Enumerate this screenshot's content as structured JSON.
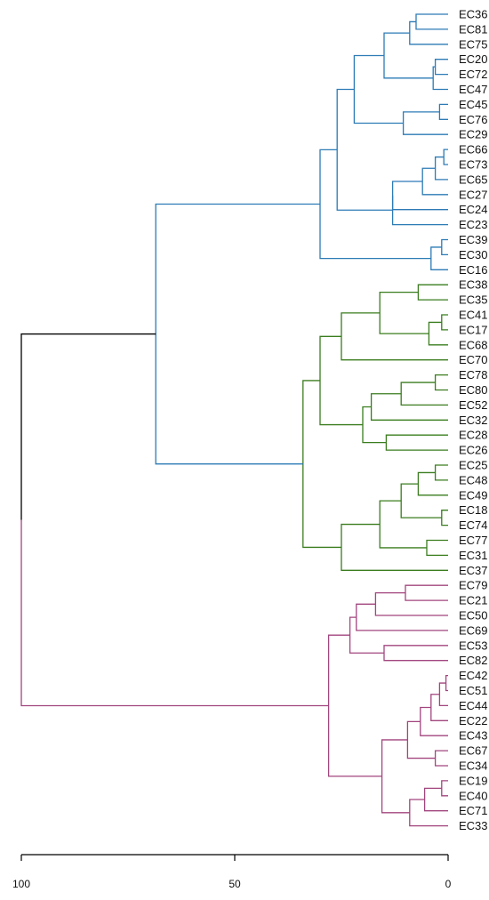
{
  "chart_data": {
    "type": "dendrogram",
    "orientation": "horizontal",
    "axis": {
      "ticks": [
        100,
        50,
        0
      ],
      "range": [
        100,
        0
      ]
    },
    "colors": {
      "blue": "#2c7bb6",
      "green": "#3a7d1e",
      "magenta": "#a2457e",
      "root": "#000000"
    },
    "root_merge": [
      100,
      53.5
    ],
    "leaves": [
      "EC36",
      "EC81",
      "EC75",
      "EC20",
      "EC72",
      "EC47",
      "EC45",
      "EC76",
      "EC29",
      "EC66",
      "EC73",
      "EC65",
      "EC27",
      "EC24",
      "EC23",
      "EC39",
      "EC30",
      "EC16",
      "EC38",
      "EC35",
      "EC41",
      "EC17",
      "EC68",
      "EC70",
      "EC78",
      "EC80",
      "EC52",
      "EC32",
      "EC28",
      "EC26",
      "EC25",
      "EC48",
      "EC49",
      "EC18",
      "EC74",
      "EC77",
      "EC31",
      "EC37",
      "EC79",
      "EC21",
      "EC50",
      "EC69",
      "EC53",
      "EC82",
      "EC42",
      "EC51",
      "EC44",
      "EC22",
      "EC43",
      "EC67",
      "EC34",
      "EC19",
      "EC40",
      "EC71",
      "EC33"
    ],
    "merges": [
      [
        7.5,
        0,
        1,
        "blue"
      ],
      [
        9,
        "m0",
        2,
        "blue"
      ],
      [
        3,
        3,
        4,
        "blue"
      ],
      [
        3.5,
        "m2",
        5,
        "blue"
      ],
      [
        15,
        "m1",
        "m3",
        "blue"
      ],
      [
        2,
        6,
        7,
        "blue"
      ],
      [
        10.5,
        "m5",
        8,
        "blue"
      ],
      [
        22,
        "m4",
        "m6",
        "blue"
      ],
      [
        1,
        9,
        10,
        "blue"
      ],
      [
        3,
        "m8",
        11,
        "blue"
      ],
      [
        6,
        "m9",
        12,
        "blue"
      ],
      [
        13,
        "m10",
        13,
        "blue"
      ],
      [
        13,
        "m11",
        14,
        "blue"
      ],
      [
        26,
        "m7",
        "m12",
        "blue"
      ],
      [
        1.5,
        15,
        16,
        "blue"
      ],
      [
        4,
        "m14",
        17,
        "blue"
      ],
      [
        30,
        "m13",
        "m15",
        "blue"
      ],
      [
        7,
        18,
        19,
        "green"
      ],
      [
        1.5,
        20,
        21,
        "green"
      ],
      [
        4.5,
        "m18",
        22,
        "green"
      ],
      [
        16,
        "m17",
        "m19",
        "green"
      ],
      [
        25,
        "m20",
        23,
        "green"
      ],
      [
        3,
        24,
        25,
        "green"
      ],
      [
        11,
        "m22",
        26,
        "green"
      ],
      [
        18,
        "m23",
        27,
        "green"
      ],
      [
        14.5,
        28,
        29,
        "green"
      ],
      [
        20,
        "m24",
        "m25",
        "green"
      ],
      [
        30,
        "m21",
        "m26",
        "green"
      ],
      [
        3,
        30,
        31,
        "green"
      ],
      [
        7,
        "m28",
        32,
        "green"
      ],
      [
        1.5,
        33,
        34,
        "green"
      ],
      [
        11,
        "m30",
        "m29",
        "green"
      ],
      [
        5,
        35,
        36,
        "green"
      ],
      [
        16,
        "m31",
        "m32",
        "green"
      ],
      [
        25,
        "m33",
        37,
        "green"
      ],
      [
        34,
        "m27",
        "m34",
        "green"
      ],
      [
        10,
        38,
        39,
        "magenta"
      ],
      [
        17,
        "m36",
        40,
        "magenta"
      ],
      [
        21.5,
        "m37",
        41,
        "magenta"
      ],
      [
        15,
        42,
        43,
        "magenta"
      ],
      [
        23,
        "m39",
        "m38",
        "magenta"
      ],
      [
        0.5,
        44,
        45,
        "magenta"
      ],
      [
        2,
        "m41",
        46,
        "magenta"
      ],
      [
        4,
        "m42",
        47,
        "magenta"
      ],
      [
        6.5,
        "m43",
        48,
        "magenta"
      ],
      [
        3,
        49,
        50,
        "magenta"
      ],
      [
        9.5,
        "m45",
        "m44",
        "magenta"
      ],
      [
        1.5,
        51,
        52,
        "magenta"
      ],
      [
        5.5,
        "m47",
        53,
        "magenta"
      ],
      [
        9,
        "m48",
        54,
        "magenta"
      ],
      [
        15.5,
        "m46",
        "m49",
        "magenta"
      ],
      [
        28,
        "m50",
        "m40",
        "magenta"
      ],
      [
        68.5,
        "m16",
        "m35",
        "blue"
      ]
    ]
  }
}
